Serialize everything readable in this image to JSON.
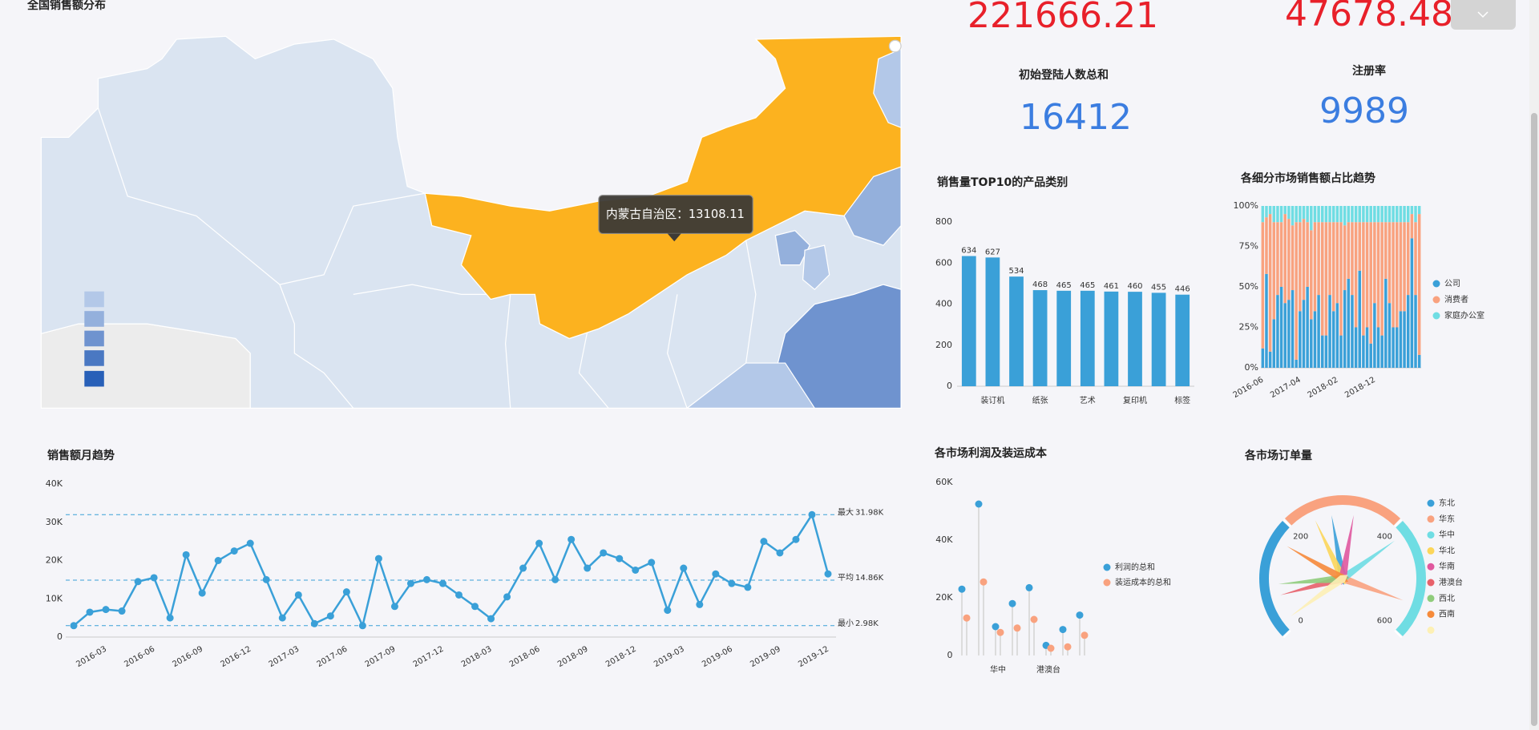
{
  "kpis": [
    {
      "value": 221666.21
    },
    {
      "value": 47678.48
    },
    {
      "label": "初始登陆人数总和",
      "value": 16412
    },
    {
      "label": "注册率",
      "value": 9989
    }
  ],
  "map": {
    "title": "全国销售额分布",
    "tooltip": "内蒙古自治区：13108.11"
  },
  "chart_data": [
    {
      "type": "bar",
      "title": "销售量TOP10的产品类别",
      "categories": [
        null,
        "装订机",
        null,
        "纸张",
        null,
        "艺术",
        null,
        "复印机",
        null,
        "标签"
      ],
      "values": [
        634,
        627,
        534,
        468,
        465,
        465,
        461,
        460,
        455,
        446
      ],
      "color": "#3aa0d8",
      "show_values": true,
      "ylim": [
        0,
        800
      ],
      "yticks": [
        0,
        200,
        400,
        600,
        800
      ],
      "grid": false
    },
    {
      "type": "bar",
      "stacked": true,
      "title": "各细分市场销售额占比趋势",
      "categories": [
        "2016-06",
        null,
        null,
        null,
        null,
        null,
        null,
        null,
        null,
        null,
        "2017-04",
        null,
        null,
        null,
        null,
        null,
        null,
        null,
        null,
        null,
        "2018-02",
        null,
        null,
        null,
        null,
        null,
        null,
        null,
        null,
        null,
        "2018-12",
        null,
        null,
        null,
        null,
        null,
        null,
        null,
        null,
        null,
        null,
        null,
        null
      ],
      "series": [
        {
          "name": "公司",
          "color": "#3aa0d8",
          "values": [
            12,
            58,
            10,
            30,
            45,
            50,
            40,
            42,
            48,
            5,
            35,
            42,
            50,
            30,
            35,
            45,
            20,
            20,
            45,
            35,
            40,
            20,
            48,
            55,
            45,
            25,
            60,
            20,
            25,
            15,
            40,
            25,
            20,
            55,
            40,
            25,
            25,
            35,
            35,
            45,
            80,
            45,
            8
          ]
        },
        {
          "name": "消费者",
          "color": "#f9a27f",
          "values": [
            78,
            35,
            85,
            60,
            45,
            40,
            55,
            50,
            40,
            85,
            55,
            50,
            40,
            55,
            55,
            45,
            70,
            70,
            45,
            55,
            50,
            70,
            40,
            35,
            45,
            65,
            30,
            70,
            65,
            75,
            50,
            65,
            70,
            35,
            50,
            65,
            65,
            55,
            55,
            45,
            15,
            45,
            87
          ]
        },
        {
          "name": "家庭办公室",
          "color": "#6fdde3",
          "values": [
            10,
            7,
            5,
            10,
            10,
            10,
            5,
            8,
            12,
            10,
            10,
            8,
            10,
            15,
            10,
            10,
            10,
            10,
            10,
            10,
            10,
            10,
            12,
            10,
            10,
            10,
            10,
            10,
            10,
            10,
            10,
            10,
            10,
            10,
            10,
            10,
            10,
            10,
            10,
            10,
            5,
            10,
            5
          ]
        }
      ],
      "ylim": [
        0,
        100
      ],
      "yticks": [
        {
          "value": 0,
          "label": "0%"
        },
        {
          "value": 25,
          "label": "25%"
        },
        {
          "value": 50,
          "label": "50%"
        },
        {
          "value": 75,
          "label": "75%"
        },
        {
          "value": 100,
          "label": "100%"
        }
      ],
      "grid": false
    },
    {
      "type": "line",
      "title": "销售额月趋势",
      "categories": [
        null,
        null,
        "2016-03",
        null,
        null,
        "2016-06",
        null,
        null,
        "2016-09",
        null,
        null,
        "2016-12",
        null,
        null,
        "2017-03",
        null,
        null,
        "2017-06",
        null,
        null,
        "2017-09",
        null,
        null,
        "2017-12",
        null,
        null,
        "2018-03",
        null,
        null,
        "2018-06",
        null,
        null,
        "2018-09",
        null,
        null,
        "2018-12",
        null,
        null,
        "2019-03",
        null,
        null,
        "2019-06",
        null,
        null,
        "2019-09",
        null,
        null,
        "2019-12"
      ],
      "values": [
        2980,
        6500,
        7200,
        6800,
        14500,
        15500,
        5000,
        21500,
        11500,
        20000,
        22500,
        24500,
        15000,
        5000,
        11000,
        3500,
        5500,
        11800,
        2980,
        20500,
        8000,
        14000,
        15000,
        14000,
        11000,
        8000,
        4800,
        10500,
        18000,
        24500,
        15000,
        25500,
        18000,
        22000,
        20500,
        17500,
        19500,
        7000,
        18000,
        8500,
        16500,
        14000,
        13000,
        25000,
        22000,
        25500,
        31980,
        16500
      ],
      "color": "#3aa0d8",
      "mark_lines": [
        {
          "name": "最大",
          "value": 31980,
          "label": "31.98K"
        },
        {
          "name": "平均",
          "value": 14860,
          "label": "14.86K"
        },
        {
          "name": "最小",
          "value": 2980,
          "label": "2.98K"
        }
      ],
      "ylim": [
        0,
        40000
      ],
      "yticks": [
        0,
        {
          "value": 10000,
          "label": "10K"
        },
        {
          "value": 20000,
          "label": "20K"
        },
        {
          "value": 30000,
          "label": "30K"
        },
        {
          "value": 40000,
          "label": "40K"
        }
      ],
      "grid": false
    },
    {
      "type": "lollipop",
      "title": "各市场利润及装运成本",
      "categories": [
        null,
        null,
        "华中",
        null,
        null,
        "港澳台",
        null,
        null
      ],
      "series": [
        {
          "name": "利润的总和",
          "color": "#3aa0d8",
          "values": [
            23000,
            52500,
            10000,
            18000,
            23500,
            3500,
            9000,
            14000
          ]
        },
        {
          "name": "装运成本的总和",
          "color": "#f9a27f",
          "values": [
            13000,
            25500,
            8000,
            9500,
            12500,
            2500,
            3000,
            7000
          ]
        }
      ],
      "ylim": [
        0,
        60000
      ],
      "yticks": [
        0,
        {
          "value": 20000,
          "label": "20K"
        },
        {
          "value": 40000,
          "label": "40K"
        },
        {
          "value": 60000,
          "label": "60K"
        }
      ],
      "grid": false
    },
    {
      "type": "gauge",
      "title": "各市场订单量",
      "series": [
        {
          "name": "东北",
          "color": "#3aa0d8",
          "value": 278
        },
        {
          "name": "华东",
          "color": "#f9a27f",
          "value": 544
        },
        {
          "name": "华中",
          "color": "#6fdde3",
          "value": 420
        },
        {
          "name": "华北",
          "color": "#fcd65a",
          "value": 244
        },
        {
          "name": "华南",
          "color": "#e0589e",
          "value": 322
        },
        {
          "name": "港澳台",
          "color": "#e8616a",
          "value": 67
        },
        {
          "name": "西北",
          "color": "#8fcc7b",
          "value": 89
        },
        {
          "name": "西南",
          "color": "#f68a3a",
          "value": 167
        },
        {
          "name": null,
          "color": "#fdf0b5",
          "value": 20
        }
      ],
      "band_colors": [
        "#3aa0d8",
        "#f9a27f",
        "#6fdde3"
      ],
      "ylim": [
        0,
        600
      ],
      "yticks": [
        0,
        200,
        400,
        600
      ]
    }
  ]
}
